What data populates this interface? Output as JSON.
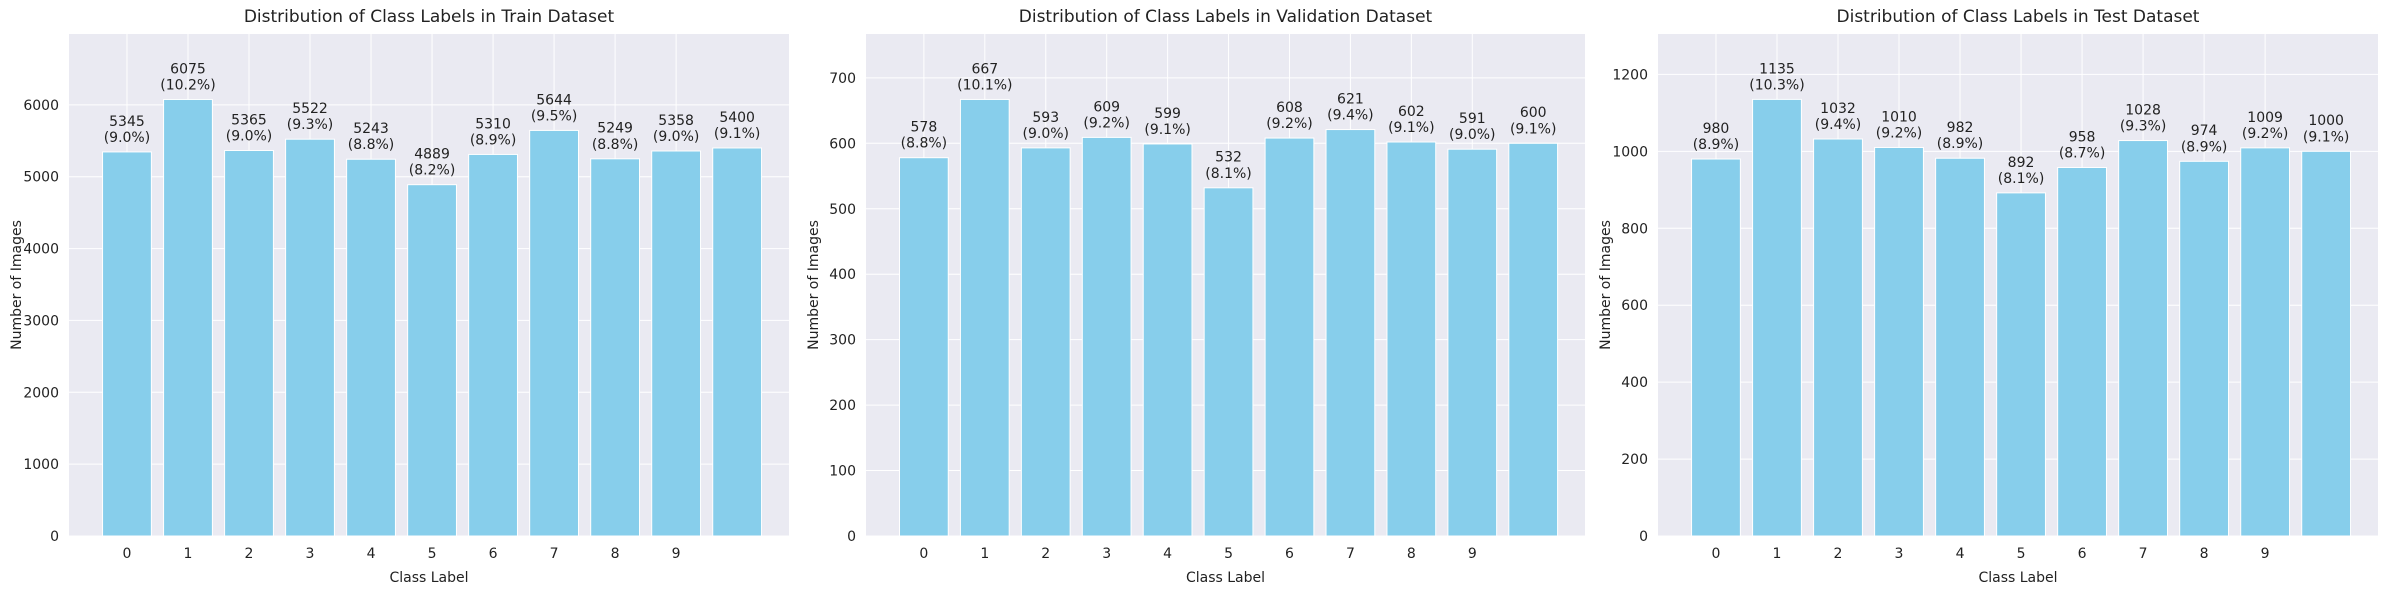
{
  "chart_data": [
    {
      "type": "bar",
      "title": "Distribution of Class Labels in Train Dataset",
      "xlabel": "Class Label",
      "ylabel": "Number of Images",
      "categories": [
        "0",
        "1",
        "2",
        "3",
        "4",
        "5",
        "6",
        "7",
        "8",
        "9",
        null
      ],
      "values": [
        5345,
        6075,
        5365,
        5522,
        5243,
        4889,
        5310,
        5644,
        5249,
        5358,
        5400
      ],
      "value_labels": [
        "5345\n(9.0%)",
        "6075\n(10.2%)",
        "5365\n(9.0%)",
        "5522\n(9.3%)",
        "5243\n(8.8%)",
        "4889\n(8.2%)",
        "5310\n(8.9%)",
        "5644\n(9.5%)",
        "5249\n(8.8%)",
        "5358\n(9.0%)",
        "5400\n(9.1%)"
      ],
      "ylim": [
        0,
        6986
      ],
      "yticks": [
        0,
        1000,
        2000,
        3000,
        4000,
        5000,
        6000
      ],
      "color": "#87ceeb",
      "grid": true
    },
    {
      "type": "bar",
      "title": "Distribution of Class Labels in Validation Dataset",
      "xlabel": "Class Label",
      "ylabel": "Number of Images",
      "categories": [
        "0",
        "1",
        "2",
        "3",
        "4",
        "5",
        "6",
        "7",
        "8",
        "9",
        null
      ],
      "values": [
        578,
        667,
        593,
        609,
        599,
        532,
        608,
        621,
        602,
        591,
        600
      ],
      "value_labels": [
        "578\n(8.8%)",
        "667\n(10.1%)",
        "593\n(9.0%)",
        "609\n(9.2%)",
        "599\n(9.1%)",
        "532\n(8.1%)",
        "608\n(9.2%)",
        "621\n(9.4%)",
        "602\n(9.1%)",
        "591\n(9.0%)",
        "600\n(9.1%)"
      ],
      "ylim": [
        0,
        767
      ],
      "yticks": [
        0,
        100,
        200,
        300,
        400,
        500,
        600,
        700
      ],
      "color": "#87ceeb",
      "grid": true
    },
    {
      "type": "bar",
      "title": "Distribution of Class Labels in Test Dataset",
      "xlabel": "Class Label",
      "ylabel": "Number of Images",
      "categories": [
        "0",
        "1",
        "2",
        "3",
        "4",
        "5",
        "6",
        "7",
        "8",
        "9",
        null
      ],
      "values": [
        980,
        1135,
        1032,
        1010,
        982,
        892,
        958,
        1028,
        974,
        1009,
        1000
      ],
      "value_labels": [
        "980\n(8.9%)",
        "1135\n(10.3%)",
        "1032\n(9.4%)",
        "1010\n(9.2%)",
        "982\n(8.9%)",
        "892\n(8.1%)",
        "958\n(8.7%)",
        "1028\n(9.3%)",
        "974\n(8.9%)",
        "1009\n(9.2%)",
        "1000\n(9.1%)"
      ],
      "ylim": [
        0,
        1305
      ],
      "yticks": [
        0,
        200,
        400,
        600,
        800,
        1000,
        1200
      ],
      "color": "#87ceeb",
      "grid": true
    }
  ]
}
